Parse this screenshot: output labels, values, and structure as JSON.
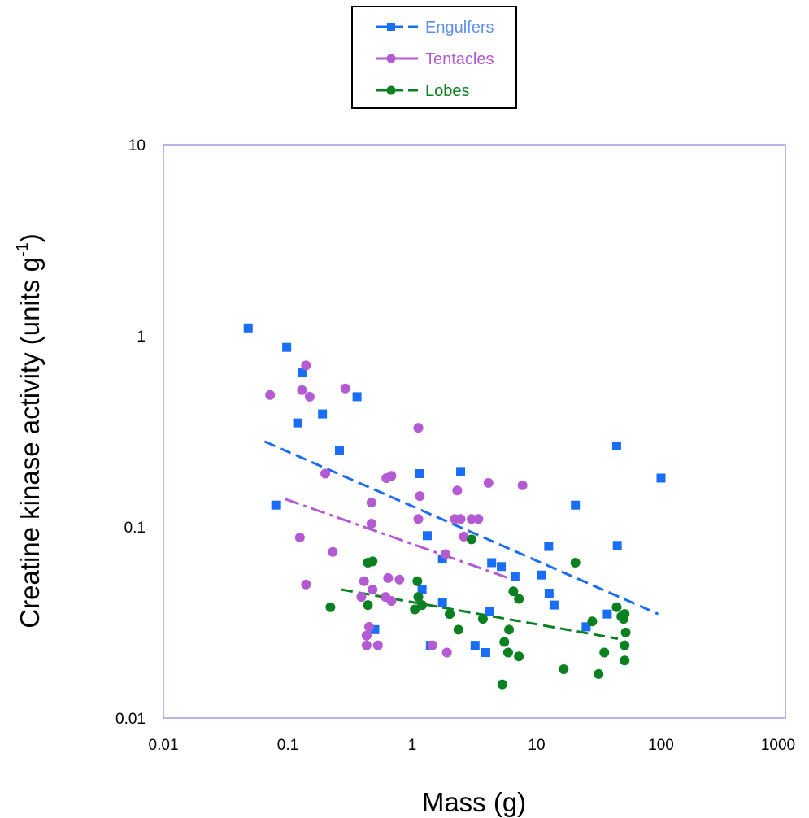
{
  "chart_data": {
    "type": "scatter",
    "title": "",
    "xlabel": "Mass (g)",
    "ylabel": "Creatine kinase activity (units g",
    "ylabel_sup": "-1",
    "ylabel_close": ")",
    "x_scale": "log",
    "y_scale": "log",
    "xlim": [
      0.01,
      1000
    ],
    "ylim": [
      0.01,
      10
    ],
    "x_ticks": [
      "0.01",
      "0.1",
      "1",
      "10",
      "100",
      "1000"
    ],
    "y_ticks": [
      "0.01",
      "0.1",
      "1",
      "10"
    ],
    "grid": false,
    "legend_position": "top-center",
    "series": [
      {
        "name": "Engulfers",
        "color": "#1a6ef5",
        "text_color": "#5f8fe8",
        "marker": "square",
        "line_style": "dashed",
        "trend_x": [
          0.065,
          95
        ],
        "trend_y": [
          0.28,
          0.035
        ],
        "points": [
          [
            0.048,
            1.1
          ],
          [
            0.098,
            0.87
          ],
          [
            0.13,
            0.64
          ],
          [
            0.36,
            0.48
          ],
          [
            0.12,
            0.35
          ],
          [
            0.19,
            0.39
          ],
          [
            0.26,
            0.25
          ],
          [
            0.08,
            0.13
          ],
          [
            1.15,
            0.19
          ],
          [
            2.45,
            0.195
          ],
          [
            44,
            0.265
          ],
          [
            100,
            0.18
          ],
          [
            20.5,
            0.13
          ],
          [
            1.32,
            0.09
          ],
          [
            1.75,
            0.068
          ],
          [
            4.35,
            0.065
          ],
          [
            5.2,
            0.062
          ],
          [
            6.7,
            0.055
          ],
          [
            10.9,
            0.056
          ],
          [
            12.5,
            0.079
          ],
          [
            12.6,
            0.045
          ],
          [
            13.8,
            0.039
          ],
          [
            44.5,
            0.08
          ],
          [
            1.75,
            0.04
          ],
          [
            4.2,
            0.036
          ],
          [
            37,
            0.035
          ],
          [
            25,
            0.03
          ],
          [
            0.5,
            0.029
          ],
          [
            1.4,
            0.024
          ],
          [
            3.2,
            0.024
          ],
          [
            3.9,
            0.022
          ],
          [
            1.2,
            0.047
          ]
        ]
      },
      {
        "name": "Tentacles",
        "color": "#b45ad2",
        "text_color": "#b45ad2",
        "marker": "circle",
        "line_style": "dashdot",
        "trend_x": [
          0.095,
          7
        ],
        "trend_y": [
          0.14,
          0.052
        ],
        "points": [
          [
            0.072,
            0.49
          ],
          [
            0.14,
            0.7
          ],
          [
            0.13,
            0.52
          ],
          [
            0.15,
            0.48
          ],
          [
            0.29,
            0.53
          ],
          [
            1.12,
            0.33
          ],
          [
            0.2,
            0.19
          ],
          [
            0.62,
            0.18
          ],
          [
            0.68,
            0.185
          ],
          [
            0.47,
            0.134
          ],
          [
            4.1,
            0.17
          ],
          [
            7.7,
            0.165
          ],
          [
            1.15,
            0.145
          ],
          [
            2.3,
            0.155
          ],
          [
            0.47,
            0.104
          ],
          [
            1.12,
            0.11
          ],
          [
            2.2,
            0.11
          ],
          [
            2.45,
            0.11
          ],
          [
            3.0,
            0.11
          ],
          [
            3.4,
            0.11
          ],
          [
            2.6,
            0.089
          ],
          [
            0.125,
            0.088
          ],
          [
            0.23,
            0.074
          ],
          [
            1.85,
            0.072
          ],
          [
            0.64,
            0.054
          ],
          [
            0.79,
            0.053
          ],
          [
            0.41,
            0.052
          ],
          [
            0.14,
            0.05
          ],
          [
            0.48,
            0.047
          ],
          [
            0.39,
            0.043
          ],
          [
            0.61,
            0.043
          ],
          [
            0.68,
            0.041
          ],
          [
            0.45,
            0.03
          ],
          [
            0.43,
            0.027
          ],
          [
            0.43,
            0.024
          ],
          [
            0.53,
            0.024
          ],
          [
            1.45,
            0.024
          ],
          [
            1.9,
            0.022
          ]
        ]
      },
      {
        "name": "Lobes",
        "color": "#0a8020",
        "text_color": "#0a8020",
        "marker": "circle",
        "line_style": "dashed",
        "trend_x": [
          0.27,
          45
        ],
        "trend_y": [
          0.047,
          0.026
        ],
        "points": [
          [
            3.0,
            0.086
          ],
          [
            0.44,
            0.065
          ],
          [
            0.48,
            0.066
          ],
          [
            20.5,
            0.065
          ],
          [
            1.1,
            0.052
          ],
          [
            6.5,
            0.046
          ],
          [
            7.2,
            0.042
          ],
          [
            1.12,
            0.043
          ],
          [
            1.2,
            0.039
          ],
          [
            0.44,
            0.039
          ],
          [
            0.22,
            0.038
          ],
          [
            1.05,
            0.037
          ],
          [
            44,
            0.038
          ],
          [
            48,
            0.034
          ],
          [
            51,
            0.035
          ],
          [
            3.7,
            0.033
          ],
          [
            28,
            0.032
          ],
          [
            50,
            0.033
          ],
          [
            2.0,
            0.035
          ],
          [
            6.0,
            0.029
          ],
          [
            2.35,
            0.029
          ],
          [
            52,
            0.028
          ],
          [
            5.5,
            0.025
          ],
          [
            51,
            0.024
          ],
          [
            35,
            0.022
          ],
          [
            5.9,
            0.022
          ],
          [
            7.2,
            0.021
          ],
          [
            51,
            0.02
          ],
          [
            16.5,
            0.018
          ],
          [
            31.5,
            0.017
          ],
          [
            5.3,
            0.015
          ]
        ]
      }
    ]
  }
}
